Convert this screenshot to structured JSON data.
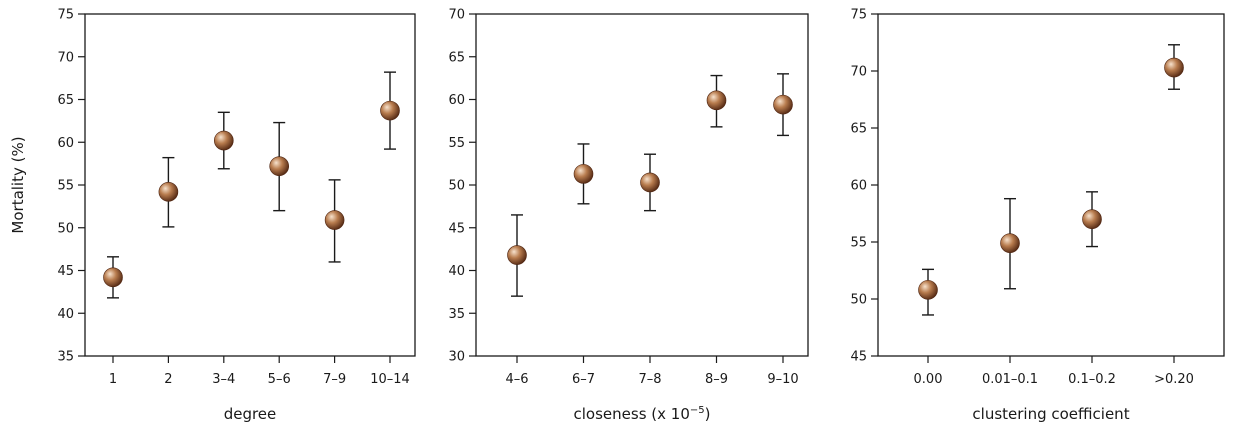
{
  "chart_data": [
    {
      "type": "scatter",
      "xlabel": "degree",
      "ylabel": "Mortality (%)",
      "categories": [
        "1",
        "2",
        "3–4",
        "5–6",
        "7–9",
        "10–14"
      ],
      "values": [
        44.2,
        54.2,
        60.2,
        57.2,
        50.9,
        63.7
      ],
      "error_low": [
        41.8,
        50.1,
        56.9,
        52.0,
        46.0,
        59.2
      ],
      "error_high": [
        46.6,
        58.2,
        63.5,
        62.3,
        55.6,
        68.2
      ],
      "ylim": [
        35,
        75
      ],
      "yticks": [
        35,
        40,
        45,
        50,
        55,
        60,
        65,
        70,
        75
      ],
      "grid": false
    },
    {
      "type": "scatter",
      "xlabel": "closeness (x 10",
      "xlabel_superscript": "−5",
      "xlabel_suffix": ")",
      "ylabel": "",
      "categories": [
        "4–6",
        "6–7",
        "7–8",
        "8–9",
        "9–10"
      ],
      "values": [
        41.8,
        51.3,
        50.3,
        59.9,
        59.4
      ],
      "error_low": [
        37.0,
        47.8,
        47.0,
        56.8,
        55.8
      ],
      "error_high": [
        46.5,
        54.8,
        53.6,
        62.8,
        63.0
      ],
      "ylim": [
        30,
        70
      ],
      "yticks": [
        30,
        35,
        40,
        45,
        50,
        55,
        60,
        65,
        70
      ],
      "grid": false
    },
    {
      "type": "scatter",
      "xlabel": "clustering coefficient",
      "ylabel": "",
      "categories": [
        "0.00",
        "0.01–0.1",
        "0.1–0.2",
        ">0.20"
      ],
      "values": [
        50.8,
        54.9,
        57.0,
        70.3
      ],
      "error_low": [
        48.6,
        50.9,
        54.6,
        68.4
      ],
      "error_high": [
        52.6,
        58.8,
        59.4,
        72.3
      ],
      "ylim": [
        45,
        75
      ],
      "yticks": [
        45,
        50,
        55,
        60,
        65,
        70,
        75
      ],
      "grid": false
    }
  ],
  "colors": {
    "marker_light": "#f7e2cd",
    "marker_mid": "#b87c4e",
    "marker_dark": "#4e2410",
    "axis": "#1a1a1a"
  }
}
